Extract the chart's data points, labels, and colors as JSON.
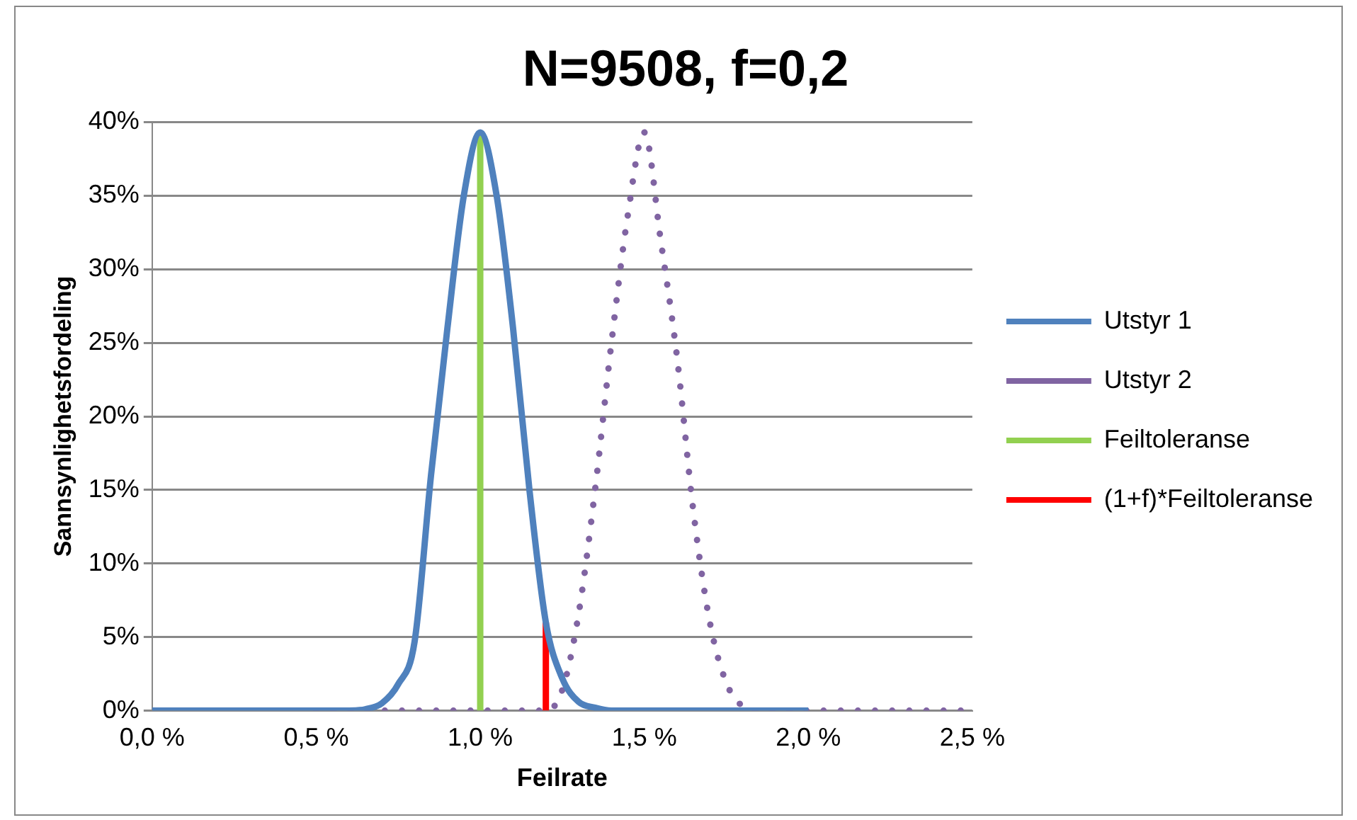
{
  "chart_data": {
    "type": "line",
    "title": "N=9508, f=0,2",
    "xlabel": "Feilrate",
    "ylabel": "Sannsynlighetsfordeling",
    "series": [
      {
        "name": "Utstyr 1",
        "color": "#4f81bd",
        "line_style": "solid",
        "x": [
          0,
          0.6,
          0.65,
          0.7,
          0.75,
          0.8,
          0.85,
          0.9,
          0.95,
          1.0,
          1.05,
          1.1,
          1.15,
          1.2,
          1.25,
          1.3,
          1.35,
          1.4,
          2.0
        ],
        "values": [
          0,
          0,
          0.1,
          0.5,
          1.8,
          4.7,
          16,
          26,
          35,
          39.3,
          35,
          26,
          15,
          6,
          2.2,
          0.6,
          0.2,
          0,
          0
        ]
      },
      {
        "name": "Utstyr 2",
        "color": "#8064a2",
        "line_style": "dotted",
        "x": [
          0.5,
          1.2,
          1.25,
          1.3,
          1.35,
          1.4,
          1.45,
          1.5,
          1.55,
          1.6,
          1.65,
          1.7,
          1.75,
          1.8,
          1.85,
          2.5
        ],
        "values": [
          0,
          0,
          1.4,
          6.6,
          15,
          25,
          33.7,
          39.3,
          32,
          24,
          13.5,
          6,
          1.9,
          0.3,
          0,
          0
        ]
      },
      {
        "name": "Feiltoleranse",
        "color": "#92d050",
        "line_style": "solid",
        "x": [
          1.0,
          1.0
        ],
        "values": [
          0,
          39.3
        ]
      },
      {
        "name": "(1+f)*Feiltoleranse",
        "color": "#ff0000",
        "line_style": "solid",
        "x": [
          1.2,
          1.2
        ],
        "values": [
          0,
          6
        ]
      }
    ],
    "xlim": [
      0,
      2.5
    ],
    "xticks": [
      {
        "value": 0,
        "label": "0,0 %"
      },
      {
        "value": 0.5,
        "label": "0,5 %"
      },
      {
        "value": 1,
        "label": "1,0 %"
      },
      {
        "value": 1.5,
        "label": "1,5 %"
      },
      {
        "value": 2,
        "label": "2,0 %"
      },
      {
        "value": 2.5,
        "label": "2,5 %"
      }
    ],
    "ylim": [
      0,
      40
    ],
    "yticks": [
      {
        "value": 0,
        "label": "0%"
      },
      {
        "value": 5,
        "label": "5%"
      },
      {
        "value": 10,
        "label": "10%"
      },
      {
        "value": 15,
        "label": "15%"
      },
      {
        "value": 20,
        "label": "20%"
      },
      {
        "value": 25,
        "label": "25%"
      },
      {
        "value": 30,
        "label": "30%"
      },
      {
        "value": 35,
        "label": "35%"
      },
      {
        "value": 40,
        "label": "40%"
      }
    ],
    "grid": "y",
    "legend": "right",
    "marker": "none"
  }
}
